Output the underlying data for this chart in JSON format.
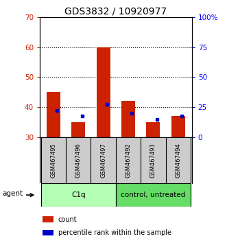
{
  "title": "GDS3832 / 10920977",
  "samples": [
    "GSM467495",
    "GSM467496",
    "GSM467497",
    "GSM467492",
    "GSM467493",
    "GSM467494"
  ],
  "count_values": [
    45,
    35,
    60,
    42,
    35,
    37
  ],
  "percentile_values": [
    39,
    37,
    41,
    38,
    36,
    37
  ],
  "baseline": 30,
  "ylim_left": [
    30,
    70
  ],
  "ylim_right": [
    0,
    100
  ],
  "yticks_left": [
    30,
    40,
    50,
    60,
    70
  ],
  "yticks_right": [
    0,
    25,
    50,
    75,
    100
  ],
  "ytick_labels_right": [
    "0",
    "25",
    "50",
    "75",
    "100%"
  ],
  "groups": [
    {
      "label": "C1q",
      "indices": [
        0,
        1,
        2
      ],
      "color": "#b3ffb3"
    },
    {
      "label": "control, untreated",
      "indices": [
        3,
        4,
        5
      ],
      "color": "#66dd66"
    }
  ],
  "bar_width": 0.55,
  "count_color": "#cc2200",
  "percentile_color": "#0000cc",
  "bg_color": "#ffffff",
  "tick_label_area_color": "#cccccc",
  "agent_label": "agent",
  "legend_count_label": "count",
  "legend_percentile_label": "percentile rank within the sample",
  "title_fontsize": 10,
  "tick_fontsize": 7.5,
  "label_fontsize": 6,
  "group_fontsize": 7.5
}
